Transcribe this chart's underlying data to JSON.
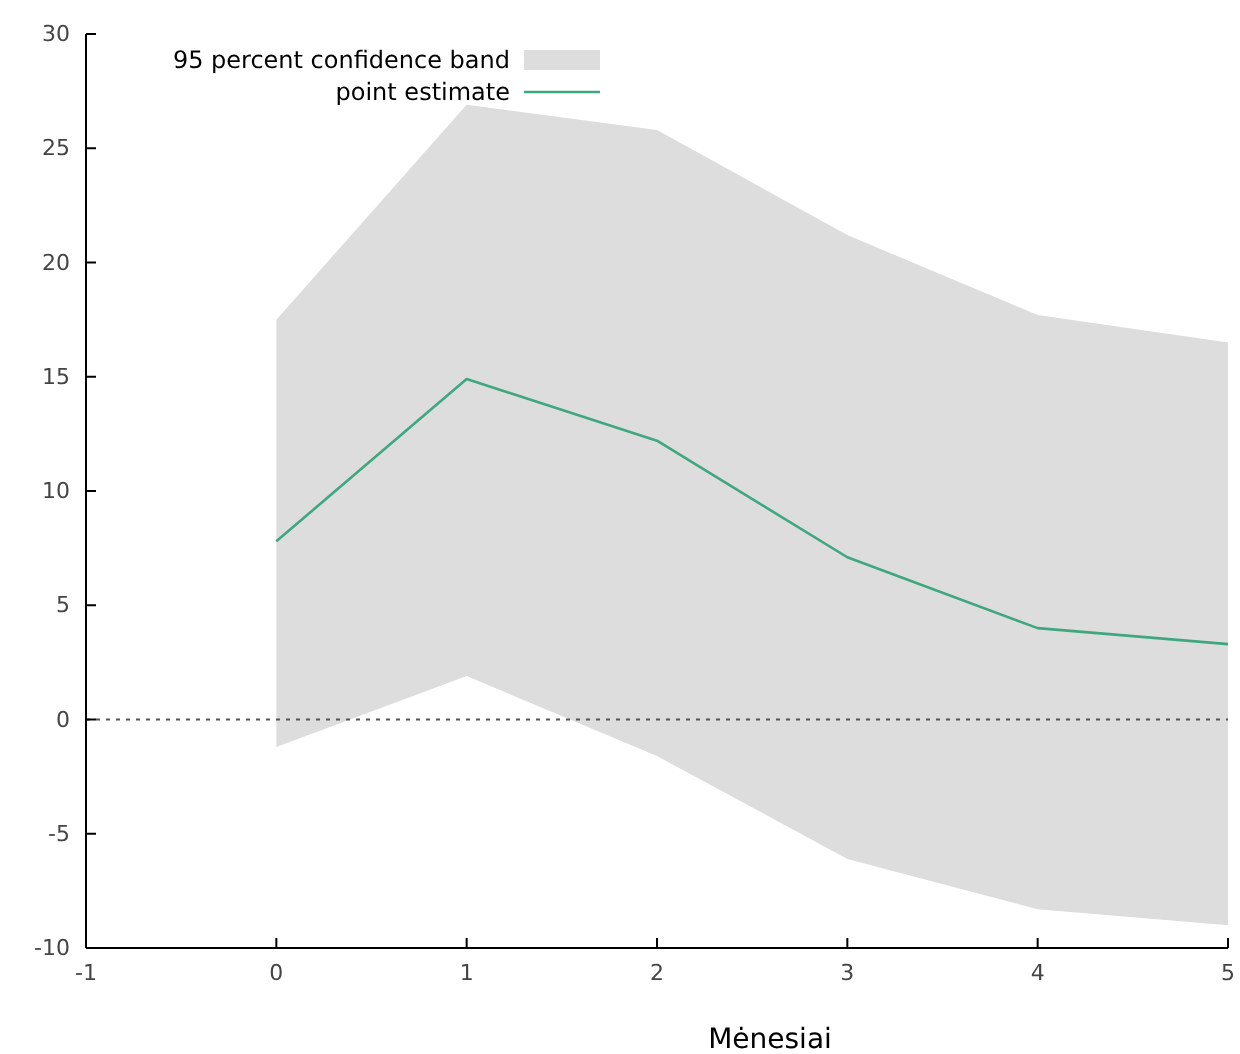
{
  "chart_data": {
    "type": "line",
    "xlabel": "Mėnesiai",
    "x": [
      0,
      1,
      2,
      3,
      4,
      5
    ],
    "series": [
      {
        "name": "point estimate",
        "color": "#3fa77f",
        "values": [
          7.8,
          14.9,
          12.2,
          7.1,
          4.0,
          3.3
        ],
        "lower": [
          -1.2,
          1.9,
          -1.6,
          -6.1,
          -8.3,
          -9.0
        ],
        "upper": [
          17.5,
          26.9,
          25.8,
          21.2,
          17.7,
          16.5
        ]
      }
    ],
    "annotations": [
      "95 percent confidence band"
    ],
    "xlim": [
      -1,
      5
    ],
    "xticks": [
      -1,
      0,
      1,
      2,
      3,
      4,
      5
    ],
    "ylim": [
      -10,
      30
    ],
    "yticks": [
      -10,
      -5,
      0,
      5,
      10,
      15,
      20,
      25,
      30
    ],
    "ref_lines": [
      {
        "axis": "y",
        "value": 0,
        "line_style": "dotted",
        "color": "#555555"
      }
    ],
    "grid": false,
    "legend": "top left",
    "line_style": "solid",
    "marker": "none"
  }
}
